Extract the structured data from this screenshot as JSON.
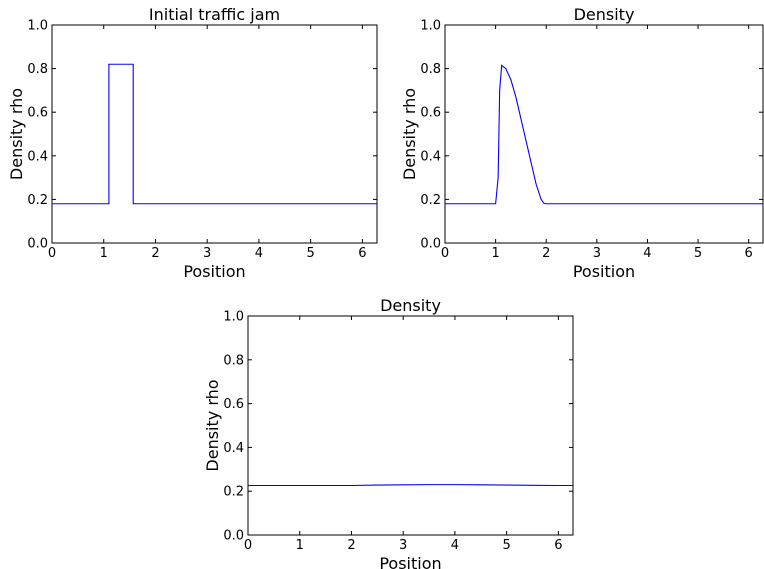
{
  "chart_data": [
    {
      "type": "line",
      "title": "Initial traffic jam",
      "xlabel": "Position",
      "ylabel": "Density rho",
      "xlim": [
        0,
        6.283
      ],
      "ylim": [
        0,
        1.0
      ],
      "xticks": [
        "0",
        "1",
        "2",
        "3",
        "4",
        "5",
        "6"
      ],
      "yticks": [
        "0.0",
        "0.2",
        "0.4",
        "0.6",
        "0.8",
        "1.0"
      ],
      "line_color": "#0000ff",
      "x": [
        0,
        1.1,
        1.1,
        1.57,
        1.57,
        6.283
      ],
      "y": [
        0.18,
        0.18,
        0.82,
        0.82,
        0.18,
        0.18
      ]
    },
    {
      "type": "line",
      "title": "Density",
      "xlabel": "Position",
      "ylabel": "Density rho",
      "xlim": [
        0,
        6.283
      ],
      "ylim": [
        0,
        1.0
      ],
      "xticks": [
        "0",
        "1",
        "2",
        "3",
        "4",
        "5",
        "6"
      ],
      "yticks": [
        "0.0",
        "0.2",
        "0.4",
        "0.6",
        "0.8",
        "1.0"
      ],
      "line_color": "#0000ff",
      "x": [
        0,
        1.0,
        1.05,
        1.08,
        1.12,
        1.2,
        1.3,
        1.4,
        1.5,
        1.6,
        1.7,
        1.8,
        1.9,
        1.95,
        2.0,
        6.283
      ],
      "y": [
        0.18,
        0.18,
        0.3,
        0.7,
        0.815,
        0.8,
        0.75,
        0.67,
        0.57,
        0.47,
        0.37,
        0.27,
        0.2,
        0.183,
        0.18,
        0.18
      ]
    },
    {
      "type": "line",
      "title": "Density",
      "xlabel": "Position",
      "ylabel": "Density rho",
      "xlim": [
        0,
        6.283
      ],
      "ylim": [
        0,
        1.0
      ],
      "xticks": [
        "0",
        "1",
        "2",
        "3",
        "4",
        "5",
        "6"
      ],
      "yticks": [
        "0.0",
        "0.2",
        "0.4",
        "0.6",
        "0.8",
        "1.0"
      ],
      "line_color": "#0000ff",
      "x": [
        0,
        1.0,
        2.0,
        2.5,
        3.0,
        3.5,
        4.0,
        4.5,
        5.0,
        5.5,
        6.0,
        6.283
      ],
      "y": [
        0.226,
        0.226,
        0.226,
        0.228,
        0.229,
        0.23,
        0.23,
        0.229,
        0.228,
        0.227,
        0.226,
        0.226
      ]
    }
  ]
}
